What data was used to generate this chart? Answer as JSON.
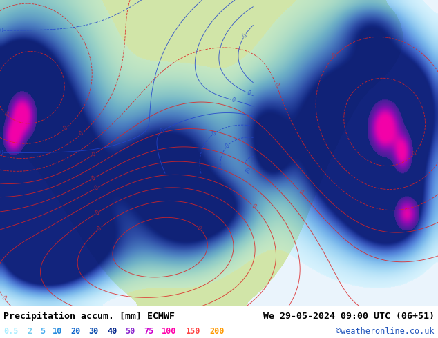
{
  "title_left": "Precipitation accum. [mm] ECMWF",
  "title_right": "We 29-05-2024 09:00 UTC (06+51)",
  "watermark": "©weatheronline.co.uk",
  "legend_values": [
    "0.5",
    "2",
    "5",
    "10",
    "20",
    "30",
    "40",
    "50",
    "75",
    "100",
    "150",
    "200"
  ],
  "legend_colors": [
    "#aaeeff",
    "#77ccee",
    "#44aaee",
    "#2288dd",
    "#1166cc",
    "#0044aa",
    "#002288",
    "#8822cc",
    "#cc00cc",
    "#ff00aa",
    "#ff4444",
    "#ff9900"
  ],
  "bg_color": "#ffffff",
  "land_color_north": "#d4eaaa",
  "land_color_south": "#ccdd99",
  "sea_color": "#e8f4ff",
  "light_sea": "#f0f8ff",
  "precip_light": "#aaddff",
  "precip_mid": "#55aaee",
  "precip_dark": "#2255cc",
  "precip_vdark": "#001188",
  "precip_purple": "#8811bb",
  "precip_magenta": "#cc00cc",
  "precip_pink": "#ff00aa",
  "isobar_red": "#dd2222",
  "isobar_blue": "#2244cc",
  "gray_border": "#888888",
  "text_black": "#000000",
  "watermark_color": "#2255bb",
  "title_fontsize": 9.5,
  "legend_fontsize": 8.5,
  "fig_width": 6.34,
  "fig_height": 4.9,
  "dpi": 100
}
